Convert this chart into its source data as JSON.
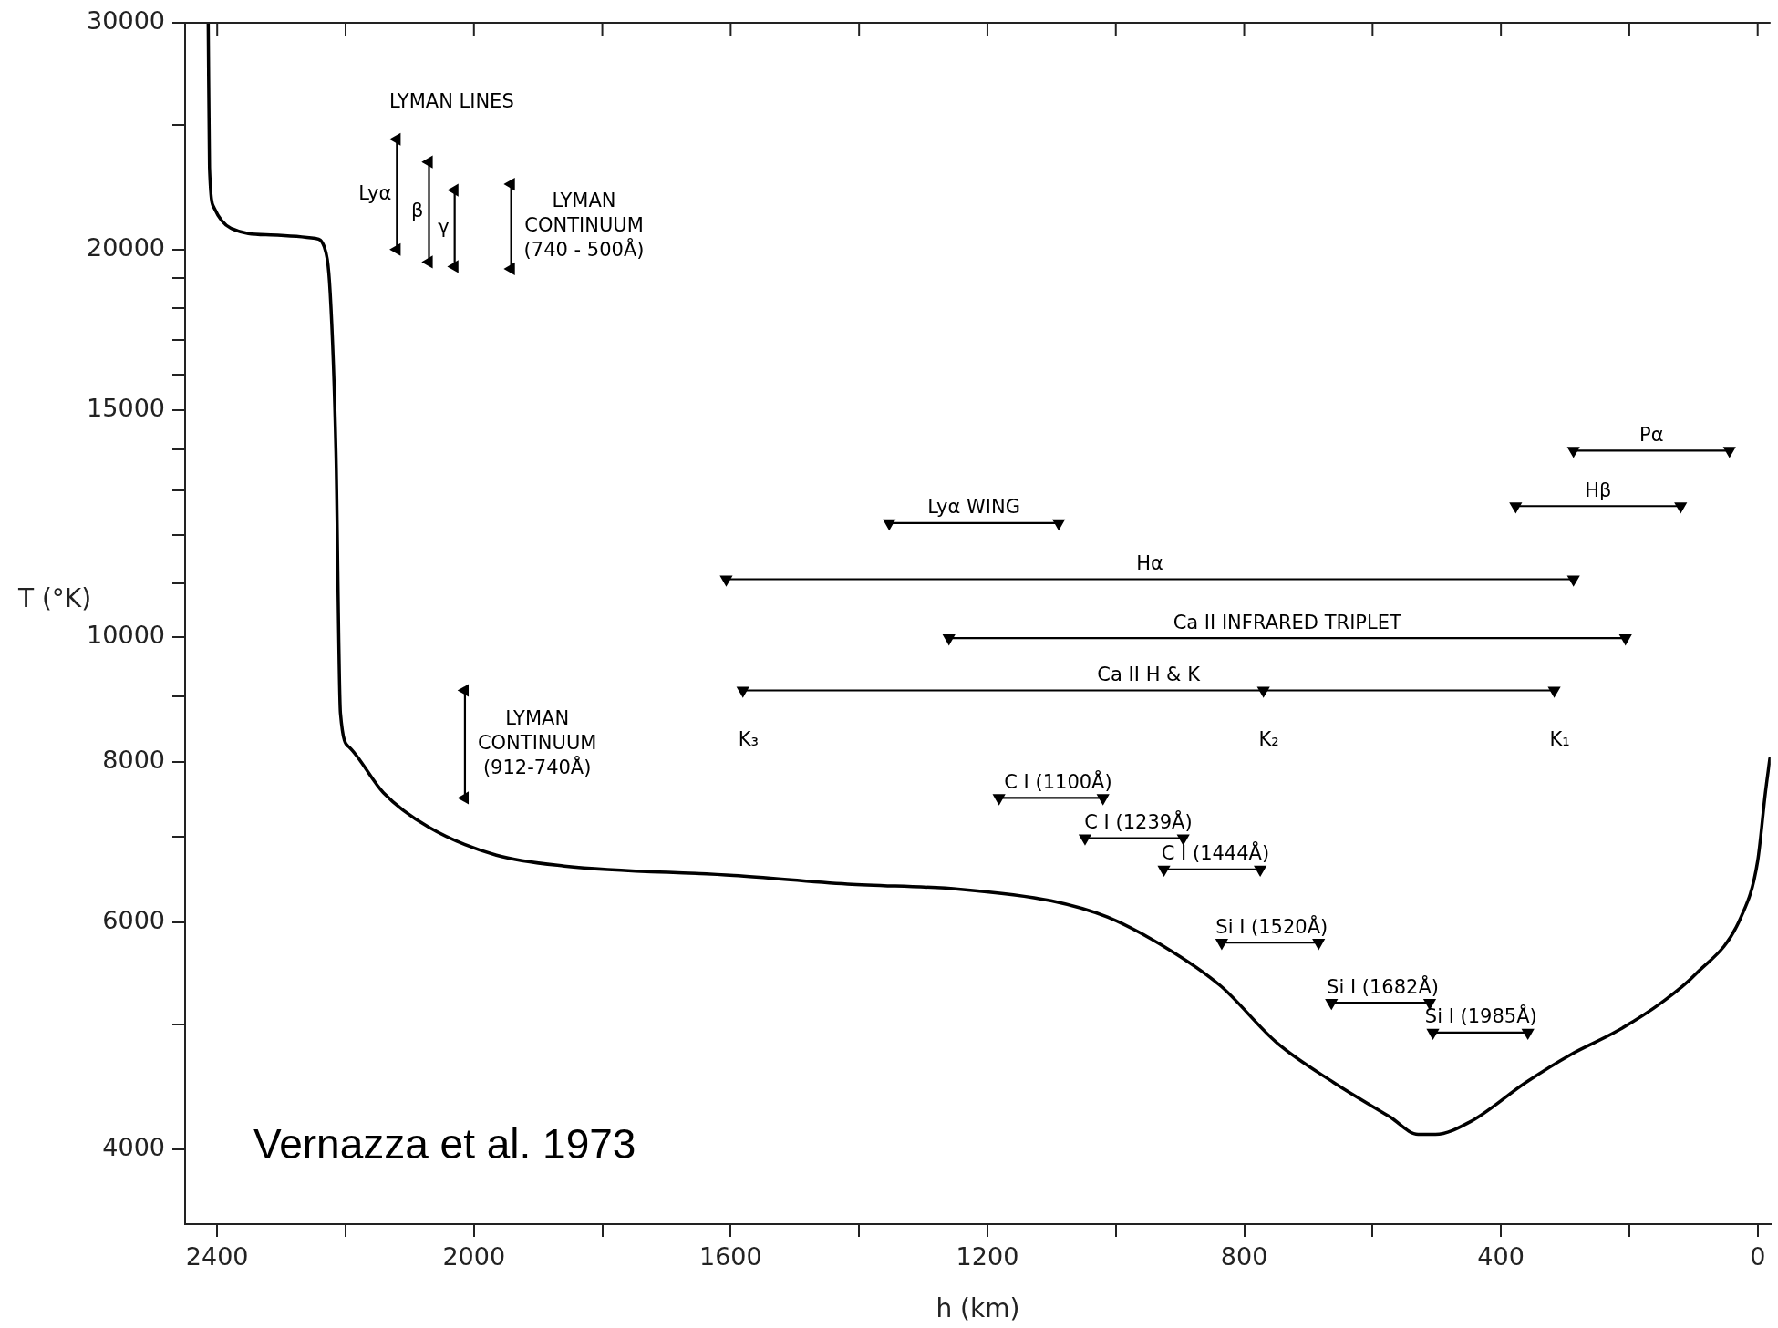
{
  "chart_data": {
    "type": "line",
    "marker": "triangle",
    "xlabel": "h (km)",
    "ylabel": "T (°K)",
    "log": "y",
    "xlim": [
      2450,
      -20
    ],
    "ylim": [
      3500,
      30000
    ],
    "xticks": [
      2400,
      {
        "value": 2200,
        "label": null
      },
      2000,
      {
        "value": 1800,
        "label": null
      },
      1600,
      {
        "value": 1400,
        "label": null
      },
      1200,
      {
        "value": 1000,
        "label": null
      },
      800,
      {
        "value": 600,
        "label": null
      },
      400,
      {
        "value": 200,
        "label": null
      },
      0
    ],
    "yticks": [
      4000,
      {
        "value": 5000,
        "label": null
      },
      6000,
      {
        "value": 7000,
        "label": null
      },
      8000,
      {
        "value": 9000,
        "label": null
      },
      10000,
      {
        "value": 11000,
        "label": null
      },
      {
        "value": 12000,
        "label": null
      },
      {
        "value": 13000,
        "label": null
      },
      {
        "value": 14000,
        "label": null
      },
      15000,
      {
        "value": 16000,
        "label": null
      },
      {
        "value": 17000,
        "label": null
      },
      {
        "value": 18000,
        "label": null
      },
      {
        "value": 19000,
        "label": null
      },
      20000,
      {
        "value": 25000,
        "label": null
      },
      30000
    ],
    "series": [
      {
        "color": "#000000",
        "marker": "none",
        "x": [
          2414,
          2412,
          2405,
          2379,
          2317,
          2247,
          2233,
          2224,
          2215,
          2208,
          2194,
          2141,
          2071,
          1965,
          1859,
          1595,
          1418,
          1242,
          1101,
          1013,
          925,
          837,
          749,
          661,
          573,
          529,
          502,
          449,
          361,
          291,
          220,
          150,
          97,
          26,
          0,
          -12,
          -19
        ],
        "values": [
          30000,
          23160,
          21560,
          20780,
          20530,
          20400,
          20080,
          18520,
          13930,
          8730,
          8210,
          7570,
          7120,
          6770,
          6640,
          6530,
          6430,
          6370,
          6240,
          6060,
          5750,
          5360,
          4840,
          4510,
          4240,
          4110,
          4110,
          4200,
          4510,
          4740,
          4940,
          5200,
          5470,
          6060,
          6700,
          7570,
          8050
        ]
      },
      {
        "name": "Lyα",
        "color": "#000000",
        "x": [
          2120,
          2120
        ],
        "values": [
          24360,
          20000
        ]
      },
      {
        "name": "β",
        "color": "#000000",
        "x": [
          2070,
          2070
        ],
        "values": [
          23390,
          19560
        ]
      },
      {
        "name": "γ",
        "color": "#000000",
        "x": [
          2030,
          2030
        ],
        "values": [
          22240,
          19400
        ]
      },
      {
        "name": "LYMAN\nCONTINUUM\n(740 - 500Å)",
        "color": "#000000",
        "x": [
          1942,
          1942
        ],
        "values": [
          22480,
          19320
        ]
      },
      {
        "name": "LYMAN\nCONTINUUM\n(912-740Å)",
        "color": "#000000",
        "x": [
          2014,
          2014
        ],
        "values": [
          9090,
          7500
        ]
      },
      {
        "name": "Pα",
        "color": "#000000",
        "x": [
          287,
          44
        ],
        "values": [
          13960,
          13960
        ]
      },
      {
        "name": "Hβ",
        "color": "#000000",
        "x": [
          377,
          120
        ],
        "values": [
          12640,
          12640
        ]
      },
      {
        "name": "Lyα WING",
        "color": "#000000",
        "x": [
          1353,
          1089
        ],
        "values": [
          12260,
          12260
        ]
      },
      {
        "name": "Hα",
        "color": "#000000",
        "x": [
          1607,
          287
        ],
        "values": [
          11090,
          11090
        ]
      },
      {
        "name": "Ca II INFRARED TRIPLET",
        "color": "#000000",
        "x": [
          1260,
          206
        ],
        "values": [
          9980,
          9980
        ]
      },
      {
        "name": "Ca II H & K",
        "color": "#000000",
        "x": [
          1581,
          770,
          317
        ],
        "values": [
          9090,
          9090,
          9090
        ]
      },
      {
        "name": "C I (1100Å)",
        "color": "#000000",
        "x": [
          1182,
          1020
        ],
        "values": [
          7500,
          7500
        ]
      },
      {
        "name": "C I (1239Å)",
        "color": "#000000",
        "x": [
          1048,
          895
        ],
        "values": [
          6980,
          6980
        ]
      },
      {
        "name": "C I (1444Å)",
        "color": "#000000",
        "x": [
          925,
          775
        ],
        "values": [
          6600,
          6600
        ]
      },
      {
        "name": "Si I (1520Å)",
        "color": "#000000",
        "x": [
          835,
          684
        ],
        "values": [
          5790,
          5790
        ]
      },
      {
        "name": "Si I (1682Å)",
        "color": "#000000",
        "x": [
          664,
          511
        ],
        "values": [
          5200,
          5200
        ]
      },
      {
        "name": "Si I (1985Å)",
        "color": "#000000",
        "x": [
          506,
          358
        ],
        "values": [
          4930,
          4930
        ]
      }
    ],
    "annotations": [
      {
        "text": "LYMAN LINES",
        "x": 2120,
        "y": 24360
      },
      {
        "text": "K₃",
        "x": 1581,
        "y": 9090
      },
      {
        "text": "K₂",
        "x": 770,
        "y": 9090
      },
      {
        "text": "K₁",
        "x": 317,
        "y": 9090
      },
      "Vernazza et al. 1973"
    ]
  }
}
